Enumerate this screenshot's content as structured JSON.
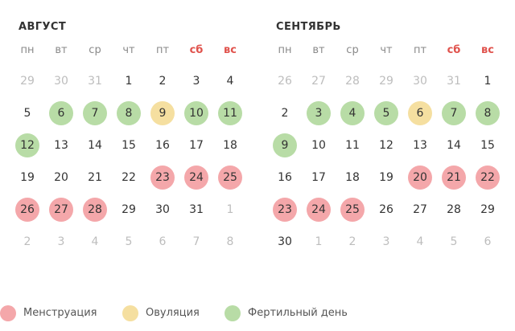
{
  "legend": [
    {
      "key": "menstruation",
      "label": "Менструация",
      "color": "#f4a7aa"
    },
    {
      "key": "ovulation",
      "label": "Овуляция",
      "color": "#f5dfa0"
    },
    {
      "key": "fertile",
      "label": "Фертильный день",
      "color": "#b8dca6"
    }
  ],
  "weekdays": [
    "пн",
    "вт",
    "ср",
    "чт",
    "пт",
    "сб",
    "вс"
  ],
  "months": [
    {
      "title": "АВГУСТ",
      "weeks": [
        [
          {
            "d": "29",
            "other": true
          },
          {
            "d": "30",
            "other": true
          },
          {
            "d": "31",
            "other": true
          },
          {
            "d": "1"
          },
          {
            "d": "2"
          },
          {
            "d": "3"
          },
          {
            "d": "4"
          }
        ],
        [
          {
            "d": "5"
          },
          {
            "d": "6",
            "t": "fertile"
          },
          {
            "d": "7",
            "t": "fertile"
          },
          {
            "d": "8",
            "t": "fertile"
          },
          {
            "d": "9",
            "t": "ovulation"
          },
          {
            "d": "10",
            "t": "fertile"
          },
          {
            "d": "11",
            "t": "fertile"
          }
        ],
        [
          {
            "d": "12",
            "t": "fertile"
          },
          {
            "d": "13"
          },
          {
            "d": "14"
          },
          {
            "d": "15"
          },
          {
            "d": "16"
          },
          {
            "d": "17"
          },
          {
            "d": "18"
          }
        ],
        [
          {
            "d": "19"
          },
          {
            "d": "20"
          },
          {
            "d": "21"
          },
          {
            "d": "22"
          },
          {
            "d": "23",
            "t": "menstruation"
          },
          {
            "d": "24",
            "t": "menstruation"
          },
          {
            "d": "25",
            "t": "menstruation"
          }
        ],
        [
          {
            "d": "26",
            "t": "menstruation"
          },
          {
            "d": "27",
            "t": "menstruation"
          },
          {
            "d": "28",
            "t": "menstruation"
          },
          {
            "d": "29"
          },
          {
            "d": "30"
          },
          {
            "d": "31"
          },
          {
            "d": "1",
            "other": true
          }
        ],
        [
          {
            "d": "2",
            "other": true
          },
          {
            "d": "3",
            "other": true
          },
          {
            "d": "4",
            "other": true
          },
          {
            "d": "5",
            "other": true
          },
          {
            "d": "6",
            "other": true
          },
          {
            "d": "7",
            "other": true
          },
          {
            "d": "8",
            "other": true
          }
        ]
      ]
    },
    {
      "title": "СЕНТЯБРЬ",
      "weeks": [
        [
          {
            "d": "26",
            "other": true
          },
          {
            "d": "27",
            "other": true
          },
          {
            "d": "28",
            "other": true
          },
          {
            "d": "29",
            "other": true
          },
          {
            "d": "30",
            "other": true
          },
          {
            "d": "31",
            "other": true
          },
          {
            "d": "1"
          }
        ],
        [
          {
            "d": "2"
          },
          {
            "d": "3",
            "t": "fertile"
          },
          {
            "d": "4",
            "t": "fertile"
          },
          {
            "d": "5",
            "t": "fertile"
          },
          {
            "d": "6",
            "t": "ovulation"
          },
          {
            "d": "7",
            "t": "fertile"
          },
          {
            "d": "8",
            "t": "fertile"
          }
        ],
        [
          {
            "d": "9",
            "t": "fertile"
          },
          {
            "d": "10"
          },
          {
            "d": "11"
          },
          {
            "d": "12"
          },
          {
            "d": "13"
          },
          {
            "d": "14"
          },
          {
            "d": "15"
          }
        ],
        [
          {
            "d": "16"
          },
          {
            "d": "17"
          },
          {
            "d": "18"
          },
          {
            "d": "19"
          },
          {
            "d": "20",
            "t": "menstruation"
          },
          {
            "d": "21",
            "t": "menstruation"
          },
          {
            "d": "22",
            "t": "menstruation"
          }
        ],
        [
          {
            "d": "23",
            "t": "menstruation"
          },
          {
            "d": "24",
            "t": "menstruation"
          },
          {
            "d": "25",
            "t": "menstruation"
          },
          {
            "d": "26"
          },
          {
            "d": "27"
          },
          {
            "d": "28"
          },
          {
            "d": "29"
          }
        ],
        [
          {
            "d": "30"
          },
          {
            "d": "1",
            "other": true
          },
          {
            "d": "2",
            "other": true
          },
          {
            "d": "3",
            "other": true
          },
          {
            "d": "4",
            "other": true
          },
          {
            "d": "5",
            "other": true
          },
          {
            "d": "6",
            "other": true
          }
        ]
      ]
    }
  ]
}
